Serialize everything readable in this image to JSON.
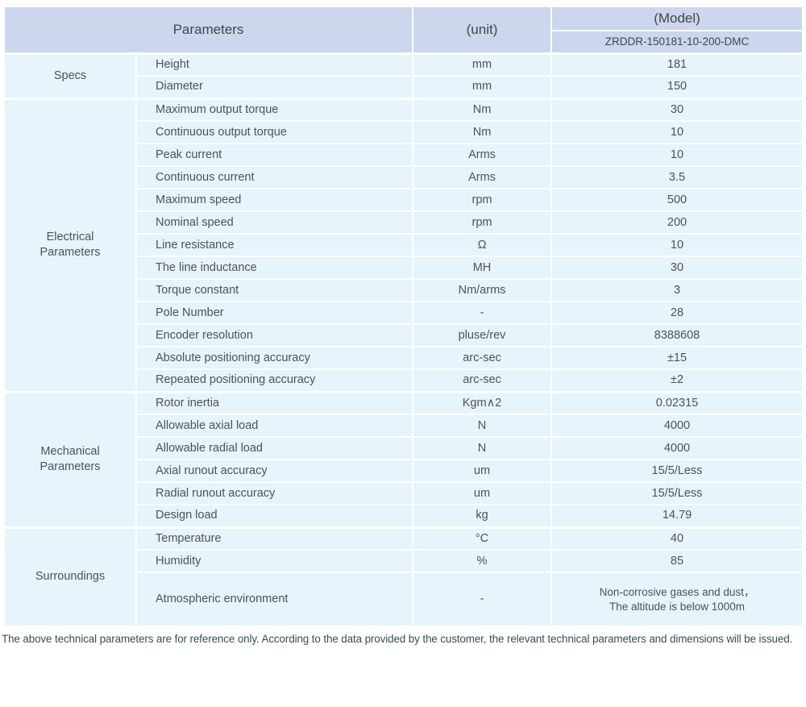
{
  "table": {
    "header": {
      "parameters_label": "Parameters",
      "unit_label": "(unit)",
      "model_label": "(Model)",
      "model_value": "ZRDDR-150181-10-200-DMC"
    },
    "groups": [
      {
        "label": "Specs",
        "rows": [
          {
            "parameter": "Height",
            "unit": "mm",
            "value": "181"
          },
          {
            "parameter": "Diameter",
            "unit": "mm",
            "value": "150"
          }
        ]
      },
      {
        "label": "Electrical\nParameters",
        "rows": [
          {
            "parameter": "Maximum output torque",
            "unit": "Nm",
            "value": "30"
          },
          {
            "parameter": "Continuous output torque",
            "unit": "Nm",
            "value": "10"
          },
          {
            "parameter": "Peak current",
            "unit": "Arms",
            "value": "10"
          },
          {
            "parameter": "Continuous current",
            "unit": "Arms",
            "value": "3.5"
          },
          {
            "parameter": "Maximum speed",
            "unit": "rpm",
            "value": "500"
          },
          {
            "parameter": "Nominal speed",
            "unit": "rpm",
            "value": "200"
          },
          {
            "parameter": "Line resistance",
            "unit": "Ω",
            "value": "10"
          },
          {
            "parameter": "The line inductance",
            "unit": "MH",
            "value": "30"
          },
          {
            "parameter": "Torque constant",
            "unit": "Nm/arms",
            "value": "3"
          },
          {
            "parameter": "Pole Number",
            "unit": "-",
            "value": "28"
          },
          {
            "parameter": "Encoder resolution",
            "unit": "pluse/rev",
            "value": "8388608"
          },
          {
            "parameter": "Absolute positioning accuracy",
            "unit": "arc-sec",
            "value": "±15"
          },
          {
            "parameter": "Repeated positioning accuracy",
            "unit": "arc-sec",
            "value": "±2"
          }
        ]
      },
      {
        "label": "Mechanical\nParameters",
        "rows": [
          {
            "parameter": "Rotor inertia",
            "unit": "Kgm∧2",
            "value": "0.02315"
          },
          {
            "parameter": "Allowable axial load",
            "unit": "N",
            "value": "4000"
          },
          {
            "parameter": "Allowable radial load",
            "unit": "N",
            "value": "4000"
          },
          {
            "parameter": "Axial runout accuracy",
            "unit": "um",
            "value": "15/5/Less"
          },
          {
            "parameter": "Radial runout accuracy",
            "unit": "um",
            "value": "15/5/Less"
          },
          {
            "parameter": "Design load",
            "unit": "kg",
            "value": "14.79"
          }
        ]
      },
      {
        "label": "Surroundings",
        "rows": [
          {
            "parameter": "Temperature",
            "unit": "°C",
            "value": "40"
          },
          {
            "parameter": "Humidity",
            "unit": "%",
            "value": "85"
          },
          {
            "parameter": "Atmospheric environment",
            "unit": "-",
            "value": "Non-corrosive gases and dust，\nThe altitude is below 1000m"
          }
        ]
      }
    ]
  },
  "footer": {
    "note": "The above technical parameters are for reference only. According to the data provided by the customer, the relevant technical parameters and dimensions will be issued."
  },
  "colors": {
    "header_bg": "#ccd6ec",
    "body_bg": "#e6f4fb",
    "divider": "#ffffff",
    "text": "#4b535a",
    "footer_text": "#3d4b54"
  }
}
